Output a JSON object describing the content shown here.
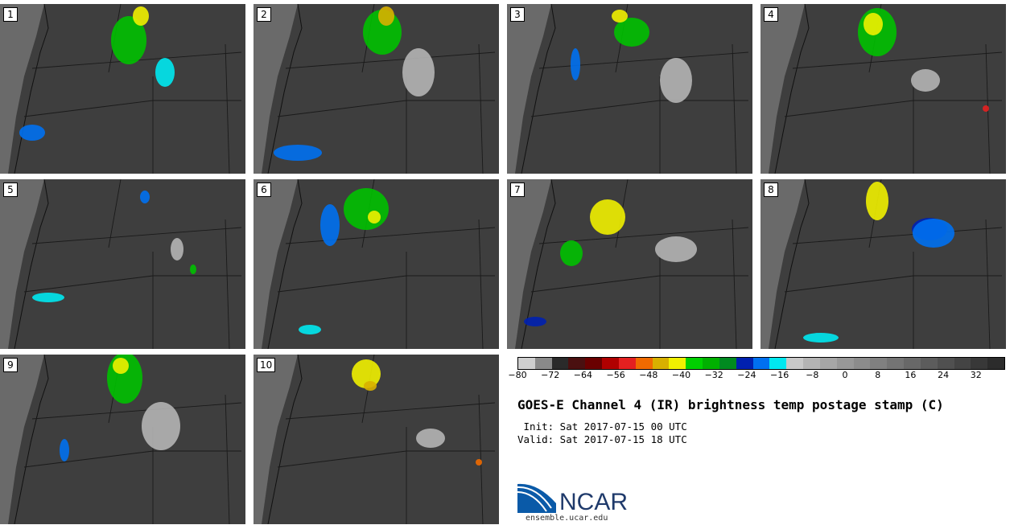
{
  "panels": [
    {
      "label": "1"
    },
    {
      "label": "2"
    },
    {
      "label": "3"
    },
    {
      "label": "4"
    },
    {
      "label": "5"
    },
    {
      "label": "6"
    },
    {
      "label": "7"
    },
    {
      "label": "8"
    },
    {
      "label": "9"
    },
    {
      "label": "10"
    }
  ],
  "colorbar": {
    "colors": [
      "#cfcfcf",
      "#8a8a8a",
      "#2a2a2a",
      "#4a1010",
      "#6a0000",
      "#b00000",
      "#e42020",
      "#f06a00",
      "#d8b000",
      "#f0f000",
      "#00d000",
      "#00b000",
      "#008a20",
      "#0020b0",
      "#0070f0",
      "#00e8f0",
      "#c8c8c8",
      "#b4b4b4",
      "#a6a6a6",
      "#989898",
      "#8c8c8c",
      "#808080",
      "#747474",
      "#686868",
      "#5c5c5c",
      "#505050",
      "#444444",
      "#383838",
      "#2c2c2c"
    ],
    "ticks": [
      "−80",
      "−72",
      "−64",
      "−56",
      "−48",
      "−40",
      "−32",
      "−24",
      "−16",
      "−8",
      "0",
      "8",
      "16",
      "24",
      "32"
    ]
  },
  "title": "GOES-E Channel 4 (IR) brightness temp postage stamp (C)",
  "init_line": " Init: Sat 2017-07-15 00 UTC",
  "valid_line": "Valid: Sat 2017-07-15 18 UTC",
  "logo": {
    "text": "NCAR",
    "url": "ensemble.ucar.edu"
  }
}
